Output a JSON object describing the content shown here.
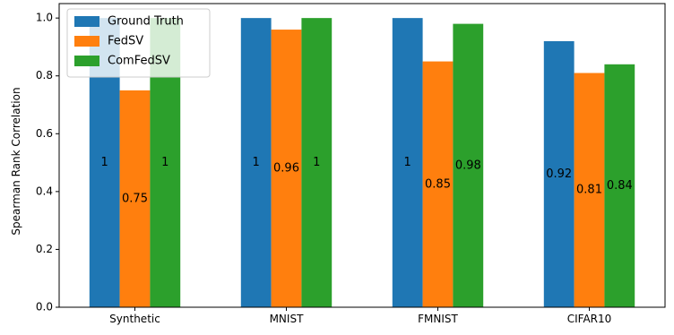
{
  "chart_data": {
    "type": "bar",
    "categories": [
      "Synthetic",
      "MNIST",
      "FMNIST",
      "CIFAR10"
    ],
    "series": [
      {
        "name": "Ground Truth",
        "color": "#1f77b4",
        "values": [
          1,
          1,
          1,
          0.92
        ],
        "labels": [
          "1",
          "1",
          "1",
          "0.92"
        ]
      },
      {
        "name": "FedSV",
        "color": "#ff7f0e",
        "values": [
          0.75,
          0.96,
          0.85,
          0.81
        ],
        "labels": [
          "0.75",
          "0.96",
          "0.85",
          "0.81"
        ]
      },
      {
        "name": "ComFedSV",
        "color": "#2ca02c",
        "values": [
          1,
          1,
          0.98,
          0.84
        ],
        "labels": [
          "1",
          "1",
          "0.98",
          "0.84"
        ]
      }
    ],
    "xlabel": "",
    "ylabel": "Spearman Rank Correlation",
    "ylim": [
      0,
      1.05
    ],
    "yticks": [
      "0.0",
      "0.2",
      "0.4",
      "0.6",
      "0.8",
      "1.0"
    ],
    "grid": false,
    "legend_position": "top-left"
  }
}
